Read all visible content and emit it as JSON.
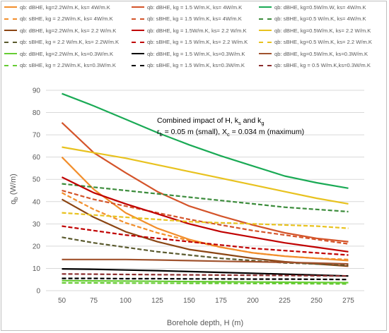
{
  "chart_data": {
    "type": "line",
    "xlabel": "Borehole depth, H (m)",
    "ylabel": {
      "main": "q",
      "sub": "b",
      "unit": " (W/m)"
    },
    "xlim": [
      37.5,
      287.5
    ],
    "ylim": [
      0,
      90
    ],
    "x_ticks": [
      50,
      75,
      100,
      125,
      150,
      175,
      200,
      225,
      250,
      275
    ],
    "y_ticks": [
      0,
      10,
      20,
      30,
      40,
      50,
      60,
      70,
      80,
      90
    ],
    "grid": "horizontal",
    "legend_position": "top",
    "annotation": {
      "line1": {
        "t1": "Combined impact of H, k",
        "s1": "s",
        "t2": " and k",
        "s2": "g"
      },
      "line2": {
        "t1": "r",
        "s1": "b",
        "t2": " = 0.05 m (small), X",
        "s2": "c",
        "t3": " = 0.034 m (maximum)"
      }
    },
    "x": [
      50,
      75,
      100,
      125,
      150,
      175,
      200,
      225,
      250,
      275
    ],
    "series": [
      {
        "name": "qb: dBHE, kg=2.2W/m.K, ks= 4W/m.K",
        "color": "#F28E2B",
        "dash": false,
        "values": [
          60,
          45.5,
          35,
          28,
          23,
          19.5,
          17,
          15.5,
          14.5,
          13.5
        ]
      },
      {
        "name": "qb: dBHE, kg = 1.5 W/m.K, ks= 4W/m.K",
        "color": "#D4542A",
        "dash": false,
        "values": [
          75.5,
          62,
          53,
          44.5,
          38,
          33.5,
          29.5,
          26,
          23.5,
          22
        ]
      },
      {
        "name": "qb: dBHE, kg=0.5W/m.W, ks= 4W/m.K",
        "color": "#1AAA55",
        "dash": false,
        "values": [
          88.5,
          83,
          77,
          71,
          65.5,
          60.5,
          56,
          51.5,
          48.5,
          46
        ]
      },
      {
        "name": "qb: sBHE, kg = 2.2W/m.K, ks= 4W/m.K",
        "color": "#F28E2B",
        "dash": true,
        "values": [
          44,
          36.5,
          30.5,
          26,
          22.5,
          19.5,
          17,
          15.5,
          14.5,
          14
        ]
      },
      {
        "name": "qb: sBHE, kg = 1.5 W/m.K, ks= 4W/m.K",
        "color": "#D4542A",
        "dash": true,
        "values": [
          45,
          41,
          38,
          35,
          32,
          29.5,
          27,
          25,
          23,
          21
        ]
      },
      {
        "name": "qb: sBHE, kg=0.5 W/m.K, ks= 4W/m.K",
        "color": "#3C8C3C",
        "dash": true,
        "values": [
          48,
          46.5,
          45,
          43.5,
          42,
          40.5,
          39,
          37.5,
          36.5,
          35.5
        ]
      },
      {
        "name": "qb: dBHE, kg=2.2W/m.K, ks= 2.2 W/m.K",
        "color": "#8B4513",
        "dash": false,
        "values": [
          41,
          33,
          26.5,
          22,
          18.5,
          16.5,
          14.5,
          13,
          12,
          11
        ]
      },
      {
        "name": "qb: dBHE, kg = 1.5W/m.K, ks= 2.2 W/m.K",
        "color": "#C00000",
        "dash": false,
        "values": [
          51,
          44,
          39,
          34.5,
          30,
          26.5,
          24,
          21.5,
          19.5,
          17.5
        ]
      },
      {
        "name": "qb: dBHE, kg=0.5W/m.K, ks= 2.2 W/m.K",
        "color": "#E8C21F",
        "dash": false,
        "values": [
          64.5,
          62,
          59.5,
          56.5,
          53.5,
          50.5,
          47.5,
          44.5,
          41.5,
          39
        ]
      },
      {
        "name": "qb: sBHE, kg = 2.2 W/m.K, ks= 2.2W/m.K",
        "color": "#5A5A2E",
        "dash": true,
        "values": [
          24,
          21.5,
          19.5,
          17.5,
          16,
          14.5,
          13.5,
          12.5,
          12,
          11.5
        ]
      },
      {
        "name": "qb: sBHE, kg = 1.5 W/m.K, ks= 2.2 W/m.K",
        "color": "#C00000",
        "dash": true,
        "values": [
          29,
          27,
          25,
          23.5,
          22,
          20.5,
          19,
          18,
          17,
          16
        ]
      },
      {
        "name": "qb: sBHE, kg=0.5 W/m.K, ks= 2.2 W/m.K",
        "color": "#E8C21F",
        "dash": true,
        "values": [
          35,
          34,
          33,
          32,
          31,
          30.5,
          30,
          29.5,
          29,
          28
        ]
      },
      {
        "name": "qb: dBHE, kg=2.2W/m.K, ks=0.3W/m.K",
        "color": "#66CC33",
        "dash": false,
        "values": [
          4.5,
          4.4,
          4.3,
          4.2,
          4.1,
          4.0,
          3.9,
          3.8,
          3.7,
          3.6
        ]
      },
      {
        "name": "qb: dBHE, kg = 1.5 W/m.K, ks=0.3W/m.K",
        "color": "#000000",
        "dash": false,
        "values": [
          9.8,
          9.6,
          9.3,
          9.0,
          8.6,
          8.2,
          7.8,
          7.4,
          7.0,
          6.6
        ]
      },
      {
        "name": "qb: dBHE, kg=0.5W/m.K, ks=0.3W/m.K",
        "color": "#A0522D",
        "dash": false,
        "values": [
          14,
          14,
          14,
          13.8,
          13.5,
          13.2,
          13,
          12.7,
          12.4,
          12
        ]
      },
      {
        "name": "qb: sBHE, kg = 2.2W/m.K, ks=0.3W/m.K",
        "color": "#66CC33",
        "dash": true,
        "values": [
          3.5,
          3.5,
          3.4,
          3.4,
          3.3,
          3.3,
          3.2,
          3.2,
          3.1,
          3.0
        ]
      },
      {
        "name": "qb: sBHE, kg = 1.5 W/m.K, ks=0.3W/m.K",
        "color": "#000000",
        "dash": true,
        "values": [
          5.5,
          5.5,
          5.4,
          5.4,
          5.3,
          5.3,
          5.2,
          5.2,
          5.1,
          5.0
        ]
      },
      {
        "name": "qb: sBHE, kg = 0.5 W/m.K,ks=0.3W/m.K",
        "color": "#8B2E2E",
        "dash": true,
        "values": [
          7.5,
          7.4,
          7.3,
          7.2,
          7.1,
          7.0,
          6.9,
          6.8,
          6.7,
          6.6
        ]
      }
    ]
  }
}
